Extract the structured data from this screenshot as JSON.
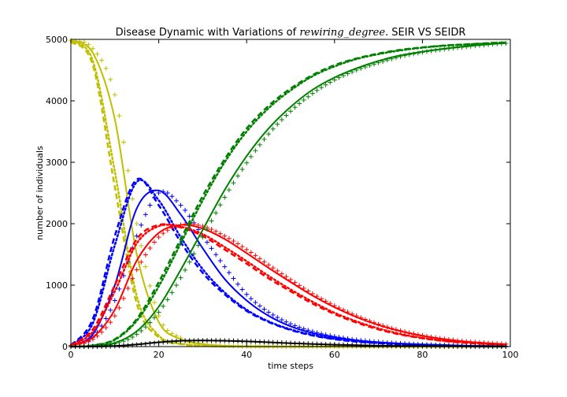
{
  "chart_data": {
    "type": "line",
    "title": {
      "before": "Disease Dynamic with Variations of ",
      "math": "rewiring_degree.",
      "after": " SEIR VS SEIDR"
    },
    "xlabel": "time steps",
    "ylabel": "number of individuals",
    "xlim": [
      0,
      100
    ],
    "ylim": [
      0,
      5000
    ],
    "xticks": [
      0,
      20,
      40,
      60,
      80,
      100
    ],
    "yticks": [
      0,
      1000,
      2000,
      3000,
      4000,
      5000
    ],
    "grid": false,
    "legend": "none",
    "x": [
      0,
      5,
      10,
      15,
      20,
      25,
      30,
      35,
      40,
      45,
      50,
      55,
      60,
      65,
      70,
      75,
      80,
      85,
      90,
      95,
      99
    ],
    "series": [
      {
        "compartment": "S",
        "style": "solid",
        "color": "#bfbf00",
        "values": [
          4980,
          4780,
          3700,
          1500,
          400,
          120,
          40,
          15,
          5,
          2,
          0,
          0,
          0,
          0,
          0,
          0,
          0,
          0,
          0,
          0,
          0
        ]
      },
      {
        "compartment": "S",
        "style": "dashed",
        "color": "#bfbf00",
        "values": [
          4960,
          4580,
          2600,
          700,
          150,
          40,
          12,
          4,
          1,
          0,
          0,
          0,
          0,
          0,
          0,
          0,
          0,
          0,
          0,
          0,
          0
        ]
      },
      {
        "compartment": "S",
        "style": "dotted",
        "color": "#bfbf00",
        "values": [
          4965,
          4650,
          2850,
          820,
          180,
          50,
          15,
          5,
          2,
          0,
          0,
          0,
          0,
          0,
          0,
          0,
          0,
          0,
          0,
          0,
          0
        ]
      },
      {
        "compartment": "S",
        "style": "plus",
        "color": "#bfbf00",
        "values": [
          4985,
          4850,
          4100,
          2000,
          500,
          140,
          45,
          15,
          5,
          2,
          0,
          0,
          0,
          0,
          0,
          0,
          0,
          0,
          0,
          0,
          0
        ]
      },
      {
        "compartment": "I",
        "style": "solid",
        "color": "#0000ff",
        "values": [
          20,
          200,
          1000,
          2250,
          2540,
          2150,
          1600,
          1100,
          750,
          500,
          330,
          220,
          150,
          100,
          70,
          50,
          35,
          25,
          15,
          10,
          5
        ]
      },
      {
        "compartment": "I",
        "style": "dashed",
        "color": "#0000ff",
        "values": [
          20,
          450,
          1800,
          2720,
          2300,
          1700,
          1200,
          850,
          580,
          400,
          270,
          180,
          120,
          80,
          55,
          35,
          25,
          15,
          10,
          5,
          5
        ]
      },
      {
        "compartment": "I",
        "style": "dotted",
        "color": "#0000ff",
        "values": [
          20,
          380,
          1650,
          2680,
          2380,
          1780,
          1260,
          880,
          600,
          410,
          280,
          190,
          125,
          85,
          58,
          38,
          26,
          16,
          10,
          6,
          5
        ]
      },
      {
        "compartment": "I",
        "style": "plus",
        "color": "#0000ff",
        "values": [
          20,
          150,
          750,
          1800,
          2500,
          2300,
          1800,
          1300,
          850,
          560,
          370,
          245,
          165,
          110,
          75,
          52,
          36,
          25,
          16,
          10,
          6
        ]
      },
      {
        "compartment": "E",
        "style": "solid",
        "color": "#ff0000",
        "values": [
          20,
          150,
          600,
          1400,
          1850,
          1980,
          1920,
          1750,
          1520,
          1280,
          1050,
          830,
          640,
          480,
          350,
          250,
          175,
          120,
          80,
          55,
          40
        ]
      },
      {
        "compartment": "E",
        "style": "dashed",
        "color": "#ff0000",
        "values": [
          20,
          280,
          1000,
          1750,
          1980,
          1940,
          1800,
          1580,
          1350,
          1110,
          900,
          700,
          530,
          390,
          280,
          195,
          135,
          90,
          60,
          40,
          30
        ]
      },
      {
        "compartment": "E",
        "style": "dotted",
        "color": "#ff0000",
        "values": [
          20,
          240,
          900,
          1680,
          1960,
          1950,
          1830,
          1620,
          1390,
          1150,
          930,
          730,
          550,
          410,
          295,
          205,
          140,
          95,
          64,
          43,
          32
        ]
      },
      {
        "compartment": "E",
        "style": "plus",
        "color": "#ff0000",
        "values": [
          20,
          120,
          500,
          1250,
          1780,
          1980,
          1960,
          1800,
          1580,
          1330,
          1090,
          860,
          665,
          500,
          365,
          260,
          182,
          125,
          84,
          58,
          42
        ]
      },
      {
        "compartment": "R",
        "style": "solid",
        "color": "#008000",
        "values": [
          0,
          10,
          60,
          250,
          650,
          1250,
          1900,
          2550,
          3100,
          3550,
          3900,
          4180,
          4380,
          4530,
          4650,
          4740,
          4800,
          4850,
          4890,
          4920,
          4940
        ]
      },
      {
        "compartment": "R",
        "style": "dashed",
        "color": "#008000",
        "values": [
          0,
          20,
          120,
          450,
          1050,
          1750,
          2450,
          3050,
          3550,
          3920,
          4200,
          4420,
          4580,
          4690,
          4770,
          4830,
          4870,
          4900,
          4920,
          4940,
          4950
        ]
      },
      {
        "compartment": "R",
        "style": "dotted",
        "color": "#008000",
        "values": [
          0,
          18,
          110,
          420,
          980,
          1680,
          2380,
          3000,
          3500,
          3880,
          4170,
          4400,
          4560,
          4680,
          4760,
          4820,
          4865,
          4897,
          4918,
          4935,
          4948
        ]
      },
      {
        "compartment": "R",
        "style": "plus",
        "color": "#008000",
        "values": [
          0,
          8,
          45,
          200,
          560,
          1120,
          1780,
          2430,
          2990,
          3460,
          3830,
          4120,
          4340,
          4500,
          4620,
          4720,
          4790,
          4840,
          4880,
          4915,
          4935
        ]
      },
      {
        "compartment": "D",
        "style": "solid",
        "color": "#000000",
        "values": [
          0,
          0,
          10,
          35,
          70,
          95,
          100,
          95,
          85,
          70,
          55,
          42,
          30,
          22,
          15,
          10,
          7,
          5,
          3,
          2,
          1
        ]
      },
      {
        "compartment": "D",
        "style": "plus",
        "color": "#000000",
        "values": [
          0,
          0,
          8,
          30,
          65,
          92,
          100,
          97,
          88,
          74,
          58,
          45,
          33,
          24,
          17,
          12,
          8,
          5,
          3,
          2,
          1
        ]
      }
    ]
  }
}
